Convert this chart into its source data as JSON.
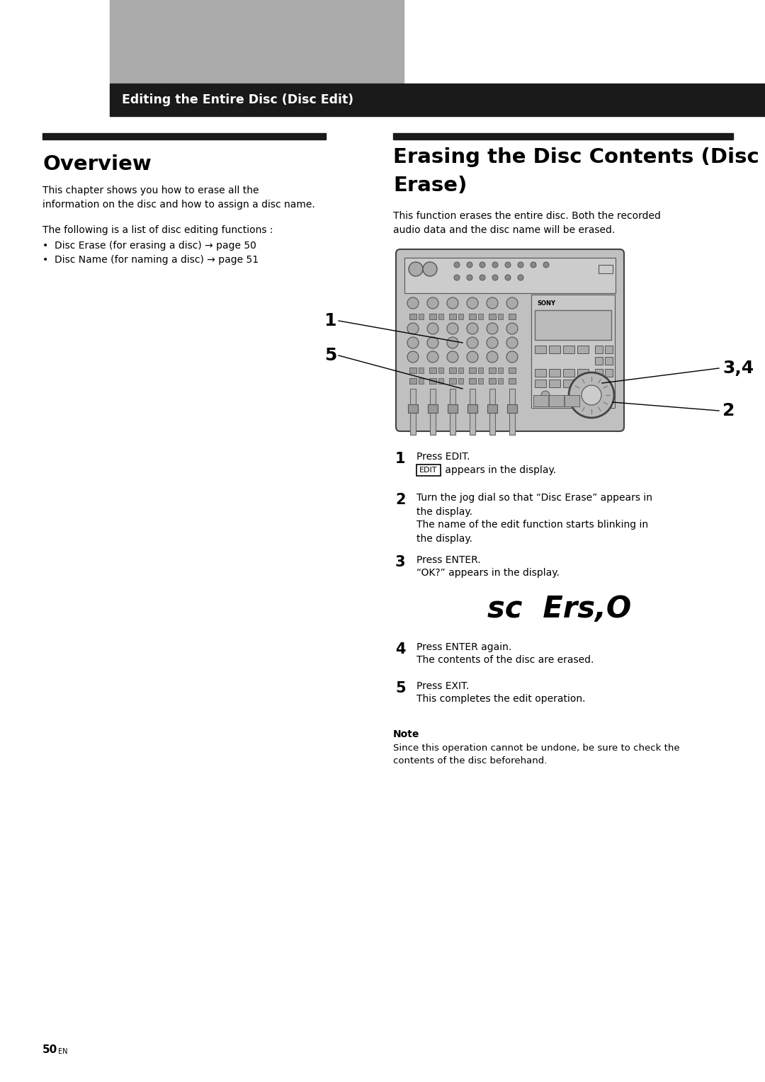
{
  "page_bg": "#ffffff",
  "header_bar_color": "#1a1a1a",
  "header_gray_color": "#aaaaaa",
  "header_text": "Editing the Entire Disc (Disc Edit)",
  "section_bar_color": "#1a1a1a",
  "overview_title": "Overview",
  "overview_body1": "This chapter shows you how to erase all the\ninformation on the disc and how to assign a disc name.",
  "overview_body2": "The following is a list of disc editing functions :",
  "overview_bullet1": "•  Disc Erase (for erasing a disc) → page 50",
  "overview_bullet2": "•  Disc Name (for naming a disc) → page 51",
  "right_title_line1": "Erasing the Disc Contents (Disc",
  "right_title_line2": "Erase)",
  "right_intro": "This function erases the entire disc. Both the recorded\naudio data and the disc name will be erased.",
  "step1_bold": "Press EDIT.",
  "step1_rest": " appears in the display.",
  "step2_bold": "Turn the jog dial so that “Disc Erase” appears in\nthe display.",
  "step2_rest": "The name of the edit function starts blinking in\nthe display.",
  "step3_bold": "Press ENTER.",
  "step3_rest": "“OK?” appears in the display.",
  "ok_display": "sc  Ers,O",
  "step4_bold": "Press ENTER again.",
  "step4_rest": "The contents of the disc are erased.",
  "step5_bold": "Press EXIT.",
  "step5_rest": "This completes the edit operation.",
  "note_title": "Note",
  "note_body": "Since this operation cannot be undone, be sure to check the\ncontents of the disc beforehand.",
  "page_number": "50"
}
